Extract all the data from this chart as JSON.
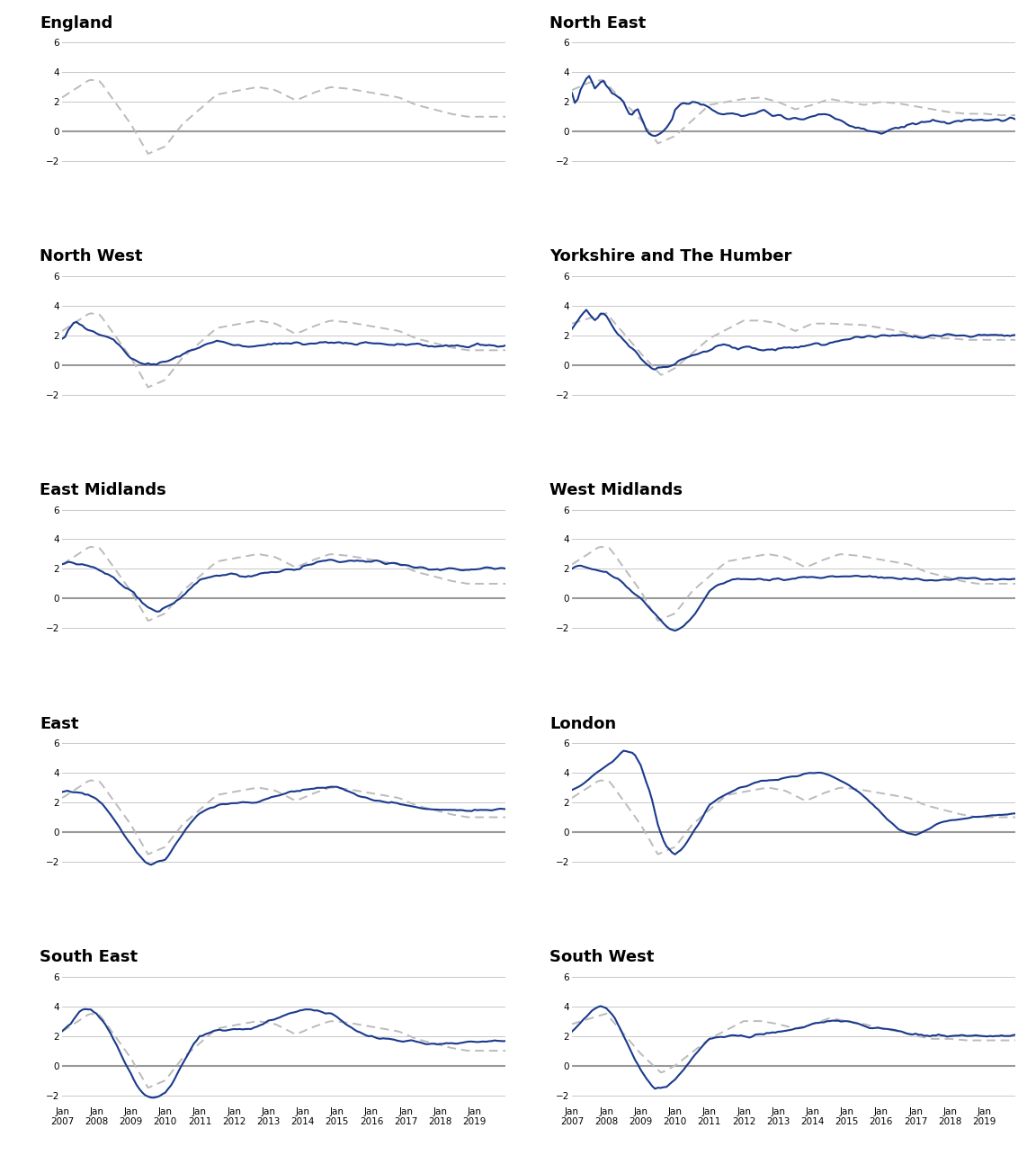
{
  "panels": [
    {
      "title": "England",
      "row": 0,
      "col": 0,
      "has_blue": false
    },
    {
      "title": "North East",
      "row": 0,
      "col": 1,
      "has_blue": true
    },
    {
      "title": "North West",
      "row": 1,
      "col": 0,
      "has_blue": true
    },
    {
      "title": "Yorkshire and The Humber",
      "row": 1,
      "col": 1,
      "has_blue": true
    },
    {
      "title": "East Midlands",
      "row": 2,
      "col": 0,
      "has_blue": true
    },
    {
      "title": "West Midlands",
      "row": 2,
      "col": 1,
      "has_blue": true
    },
    {
      "title": "East",
      "row": 3,
      "col": 0,
      "has_blue": true
    },
    {
      "title": "London",
      "row": 3,
      "col": 1,
      "has_blue": true
    },
    {
      "title": "South East",
      "row": 4,
      "col": 0,
      "has_blue": true
    },
    {
      "title": "South West",
      "row": 4,
      "col": 1,
      "has_blue": true
    }
  ],
  "ylim": [
    -2.5,
    6.5
  ],
  "yticks": [
    -2,
    0,
    2,
    4,
    6
  ],
  "xtick_years": [
    2007,
    2008,
    2009,
    2010,
    2011,
    2012,
    2013,
    2014,
    2015,
    2016,
    2017,
    2018,
    2019
  ],
  "blue_color": "#1B3A8C",
  "grey_color": "#BBBBBB",
  "zero_line_color": "#999999",
  "bg_color": "#FFFFFF",
  "grid_color": "#C8C8C8",
  "title_fontsize": 13,
  "tick_fontsize": 7.5
}
